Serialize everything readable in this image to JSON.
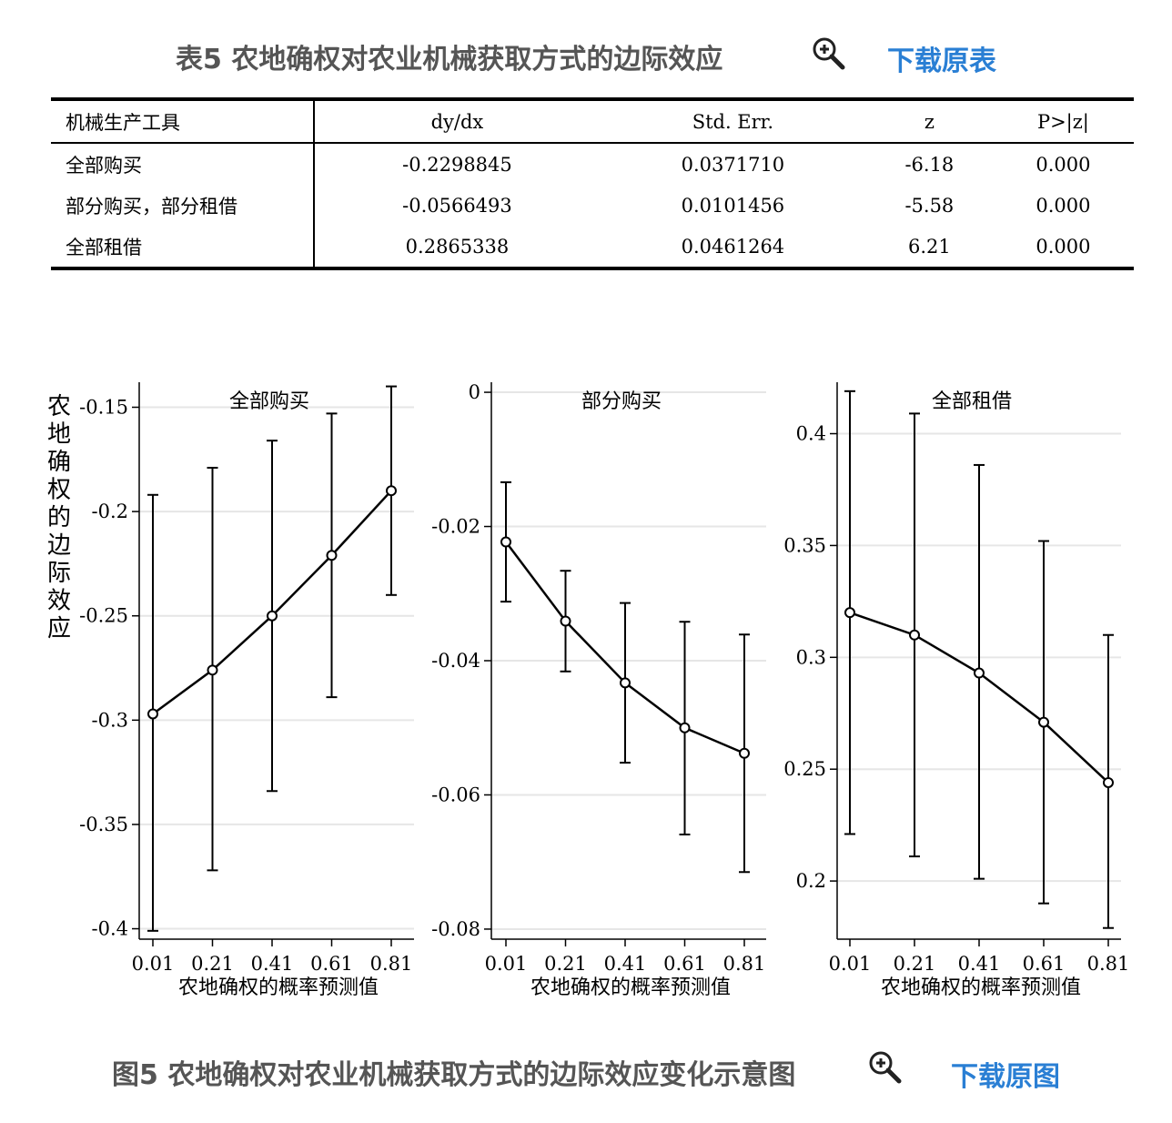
{
  "table_caption": "表5 农地确权对农业机械获取方式的边际效应",
  "table_download": "下载原表",
  "figure_caption": "图5 农地确权对农业机械获取方式的边际效应变化示意图",
  "figure_download": "下载原图",
  "colors": {
    "caption": "#555555",
    "link": "#2a7fd4",
    "grid": "#e6e6e6",
    "line": "#000000"
  },
  "table": {
    "headers": [
      "机械生产工具",
      "dy/dx",
      "Std. Err.",
      "z",
      "P>|z|"
    ],
    "rows": [
      [
        "全部购买",
        "-0.2298845",
        "0.0371710",
        "-6.18",
        "0.000"
      ],
      [
        "部分购买，部分租借",
        "-0.0566493",
        "0.0101456",
        "-5.58",
        "0.000"
      ],
      [
        "全部租借",
        "0.2865338",
        "0.0461264",
        "6.21",
        "0.000"
      ]
    ]
  },
  "chart_data": [
    {
      "type": "line",
      "title": "全部购买",
      "ylabel": "农地确权的边际效应",
      "xlabel": "农地确权的概率预测值",
      "x": [
        0.01,
        0.21,
        0.41,
        0.61,
        0.81
      ],
      "x_tick_labels": [
        "0.01",
        "0.21",
        "0.41",
        "0.61",
        "0.81"
      ],
      "y": [
        -0.297,
        -0.276,
        -0.25,
        -0.221,
        -0.19
      ],
      "ci_low": [
        -0.401,
        -0.372,
        -0.334,
        -0.289,
        -0.24
      ],
      "ci_high": [
        -0.192,
        -0.179,
        -0.166,
        -0.153,
        -0.14
      ],
      "y_ticks": [
        -0.15,
        -0.2,
        -0.25,
        -0.3,
        -0.35,
        -0.4
      ],
      "y_tick_labels": [
        "-0.15",
        "-0.2",
        "-0.25",
        "-0.3",
        "-0.35",
        "-0.4"
      ],
      "ylim": [
        -0.405,
        -0.138
      ],
      "grid": true
    },
    {
      "type": "line",
      "title": "部分购买",
      "ylabel": "",
      "xlabel": "农地确权的概率预测值",
      "x": [
        0.01,
        0.21,
        0.41,
        0.61,
        0.81
      ],
      "x_tick_labels": [
        "0.01",
        "0.21",
        "0.41",
        "0.61",
        "0.81"
      ],
      "y": [
        -0.0223,
        -0.0341,
        -0.0433,
        -0.05,
        -0.0538
      ],
      "ci_low": [
        -0.0312,
        -0.0416,
        -0.0552,
        -0.0659,
        -0.0715
      ],
      "ci_high": [
        -0.0134,
        -0.0266,
        -0.0314,
        -0.0342,
        -0.0361
      ],
      "y_ticks": [
        0,
        -0.02,
        -0.04,
        -0.06,
        -0.08
      ],
      "y_tick_labels": [
        "0",
        "-0.02",
        "-0.04",
        "-0.06",
        "-0.08"
      ],
      "ylim": [
        -0.0815,
        0.0015
      ],
      "grid": true
    },
    {
      "type": "line",
      "title": "全部租借",
      "ylabel": "",
      "xlabel": "农地确权的概率预测值",
      "x": [
        0.01,
        0.21,
        0.41,
        0.61,
        0.81
      ],
      "x_tick_labels": [
        "0.01",
        "0.21",
        "0.41",
        "0.61",
        "0.81"
      ],
      "y": [
        0.32,
        0.31,
        0.293,
        0.271,
        0.244
      ],
      "ci_low": [
        0.221,
        0.211,
        0.201,
        0.19,
        0.179
      ],
      "ci_high": [
        0.419,
        0.409,
        0.386,
        0.352,
        0.31
      ],
      "y_ticks": [
        0.4,
        0.35,
        0.3,
        0.25,
        0.2
      ],
      "y_tick_labels": [
        "0.4",
        "0.35",
        "0.3",
        "0.25",
        "0.2"
      ],
      "ylim": [
        0.174,
        0.423
      ],
      "grid": true
    }
  ]
}
